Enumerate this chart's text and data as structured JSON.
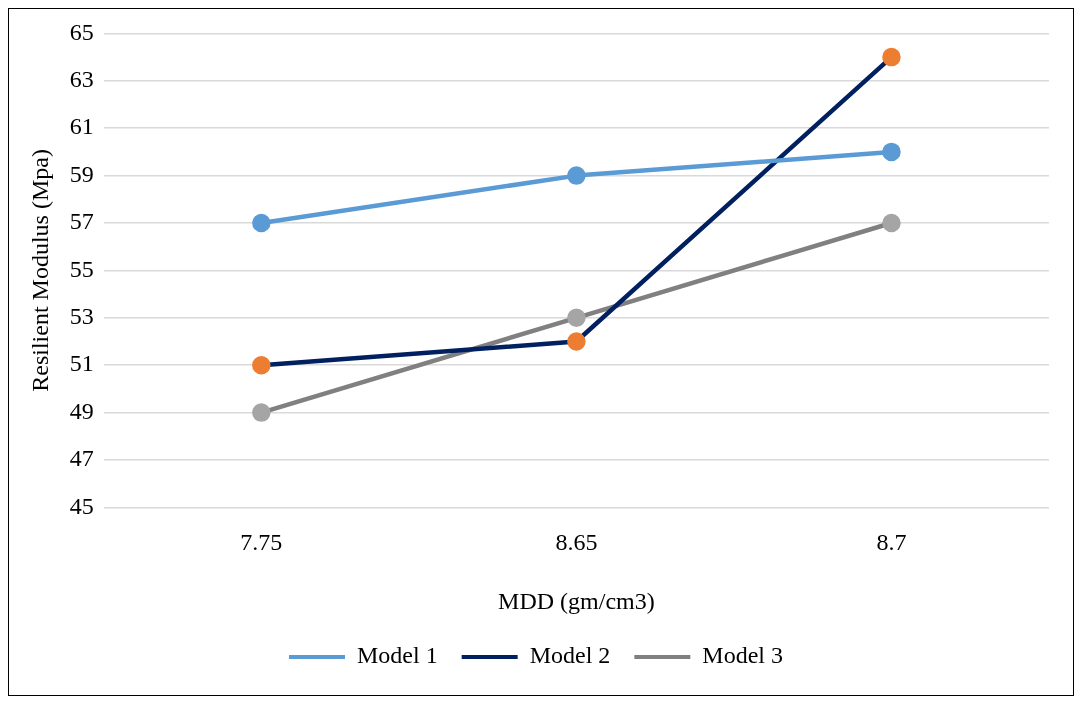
{
  "chart_data": {
    "type": "line",
    "xlabel": "MDD (gm/cm3)",
    "ylabel": "Resilient Modulus (Mpa)",
    "categories": [
      "7.75",
      "8.65",
      "8.7"
    ],
    "series": [
      {
        "name": "Model 1",
        "color": "#5b9bd5",
        "values": [
          57,
          59,
          60
        ]
      },
      {
        "name": "Model 2",
        "color": "#002060",
        "colors": [
          "#ed7d31",
          "#ed7d31",
          "#ed7d31"
        ],
        "values": [
          51,
          52,
          64
        ]
      },
      {
        "name": "Model 3",
        "color": "#808080",
        "colors": [
          "#a5a5a5",
          "#a5a5a5",
          "#a5a5a5"
        ],
        "values": [
          49,
          53,
          57
        ]
      }
    ],
    "ylim": [
      45,
      65
    ],
    "yticks": [
      45,
      47,
      49,
      51,
      53,
      55,
      57,
      59,
      61,
      63,
      65
    ],
    "grid": "y",
    "legend": "bottom",
    "marker": "circle",
    "line_style": "solid"
  }
}
